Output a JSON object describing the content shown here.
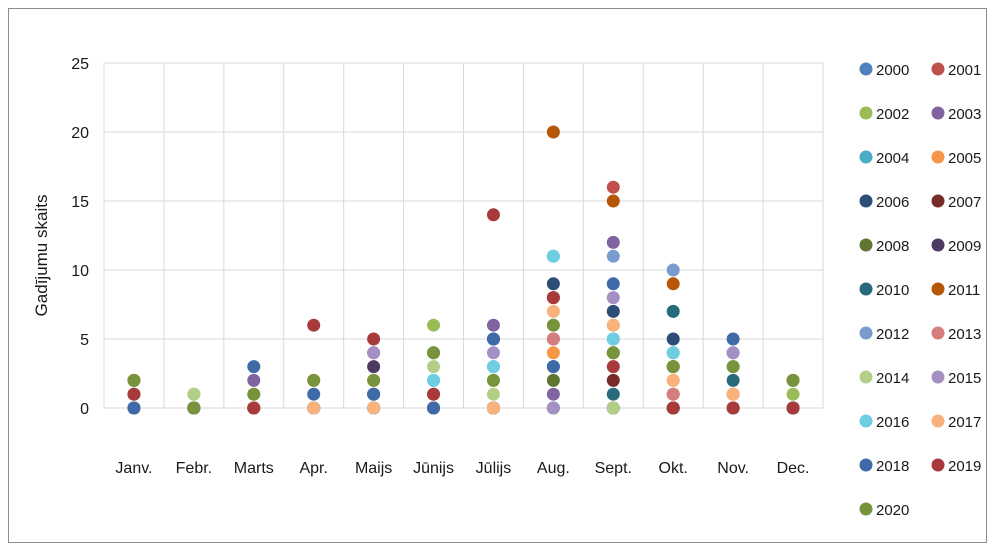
{
  "chart_data": {
    "type": "scatter",
    "ylabel": "Gadījumu skaits",
    "xlabel": "",
    "categories": [
      "Janv.",
      "Febr.",
      "Marts",
      "Apr.",
      "Maijs",
      "Jūnijs",
      "Jūlijs",
      "Aug.",
      "Sept.",
      "Okt.",
      "Nov.",
      "Dec."
    ],
    "ylim": [
      0,
      25
    ],
    "yticks": [
      0,
      5,
      10,
      15,
      20,
      25
    ],
    "grid": true,
    "legend_position": "right",
    "series": [
      {
        "name": "2000",
        "color": "#4f81bd",
        "values": [
          0,
          0,
          0,
          0,
          0,
          0,
          0,
          3,
          0,
          0,
          0,
          0
        ]
      },
      {
        "name": "2001",
        "color": "#c0504d",
        "values": [
          1,
          0,
          0,
          0,
          0,
          1,
          0,
          5,
          16,
          1,
          1,
          0
        ]
      },
      {
        "name": "2002",
        "color": "#9bbb59",
        "values": [
          2,
          1,
          1,
          2,
          2,
          6,
          2,
          6,
          4,
          3,
          3,
          1
        ]
      },
      {
        "name": "2003",
        "color": "#8064a2",
        "values": [
          0,
          0,
          2,
          0,
          4,
          0,
          6,
          1,
          12,
          0,
          4,
          0
        ]
      },
      {
        "name": "2004",
        "color": "#4bacc6",
        "values": [
          0,
          0,
          0,
          0,
          0,
          2,
          3,
          11,
          5,
          4,
          0,
          0
        ]
      },
      {
        "name": "2005",
        "color": "#f79646",
        "values": [
          0,
          0,
          0,
          0,
          0,
          0,
          0,
          4,
          6,
          2,
          1,
          0
        ]
      },
      {
        "name": "2006",
        "color": "#2c4d75",
        "values": [
          0,
          0,
          0,
          0,
          1,
          0,
          5,
          9,
          7,
          5,
          0,
          0
        ]
      },
      {
        "name": "2007",
        "color": "#772c2a",
        "values": [
          0,
          0,
          0,
          0,
          0,
          0,
          0,
          8,
          2,
          0,
          0,
          0
        ]
      },
      {
        "name": "2008",
        "color": "#5f7530",
        "values": [
          2,
          0,
          0,
          0,
          0,
          4,
          0,
          2,
          4,
          3,
          0,
          2
        ]
      },
      {
        "name": "2009",
        "color": "#4d3b62",
        "values": [
          0,
          0,
          0,
          0,
          3,
          0,
          0,
          0,
          0,
          0,
          0,
          0
        ]
      },
      {
        "name": "2010",
        "color": "#276a7c",
        "values": [
          0,
          0,
          0,
          0,
          0,
          0,
          0,
          0,
          1,
          7,
          2,
          0
        ]
      },
      {
        "name": "2011",
        "color": "#b65708",
        "values": [
          0,
          0,
          0,
          0,
          0,
          0,
          0,
          20,
          15,
          9,
          0,
          0
        ]
      },
      {
        "name": "2012",
        "color": "#7a9bd0",
        "values": [
          0,
          0,
          0,
          0,
          0,
          0,
          0,
          0,
          11,
          10,
          0,
          0
        ]
      },
      {
        "name": "2013",
        "color": "#d47f7d",
        "values": [
          0,
          0,
          0,
          0,
          0,
          0,
          0,
          5,
          0,
          1,
          0,
          0
        ]
      },
      {
        "name": "2014",
        "color": "#b3cf87",
        "values": [
          0,
          1,
          0,
          0,
          0,
          3,
          1,
          0,
          0,
          0,
          0,
          0
        ]
      },
      {
        "name": "2015",
        "color": "#a490c2",
        "values": [
          0,
          0,
          0,
          0,
          4,
          0,
          4,
          0,
          8,
          0,
          4,
          0
        ]
      },
      {
        "name": "2016",
        "color": "#6fcde2",
        "values": [
          0,
          0,
          0,
          0,
          0,
          2,
          3,
          11,
          5,
          4,
          0,
          0
        ]
      },
      {
        "name": "2017",
        "color": "#f9b27b",
        "values": [
          0,
          0,
          0,
          0,
          0,
          0,
          0,
          7,
          6,
          2,
          1,
          0
        ]
      },
      {
        "name": "2018",
        "color": "#3e6aa8",
        "values": [
          0,
          0,
          3,
          1,
          1,
          0,
          5,
          3,
          9,
          0,
          5,
          0
        ]
      },
      {
        "name": "2019",
        "color": "#a83a3c",
        "values": [
          1,
          0,
          0,
          6,
          5,
          1,
          14,
          8,
          3,
          0,
          0,
          0
        ]
      },
      {
        "name": "2020",
        "color": "#77933c",
        "values": [
          2,
          0,
          1,
          2,
          2,
          4,
          2,
          6,
          4,
          3,
          3,
          2
        ]
      }
    ]
  }
}
